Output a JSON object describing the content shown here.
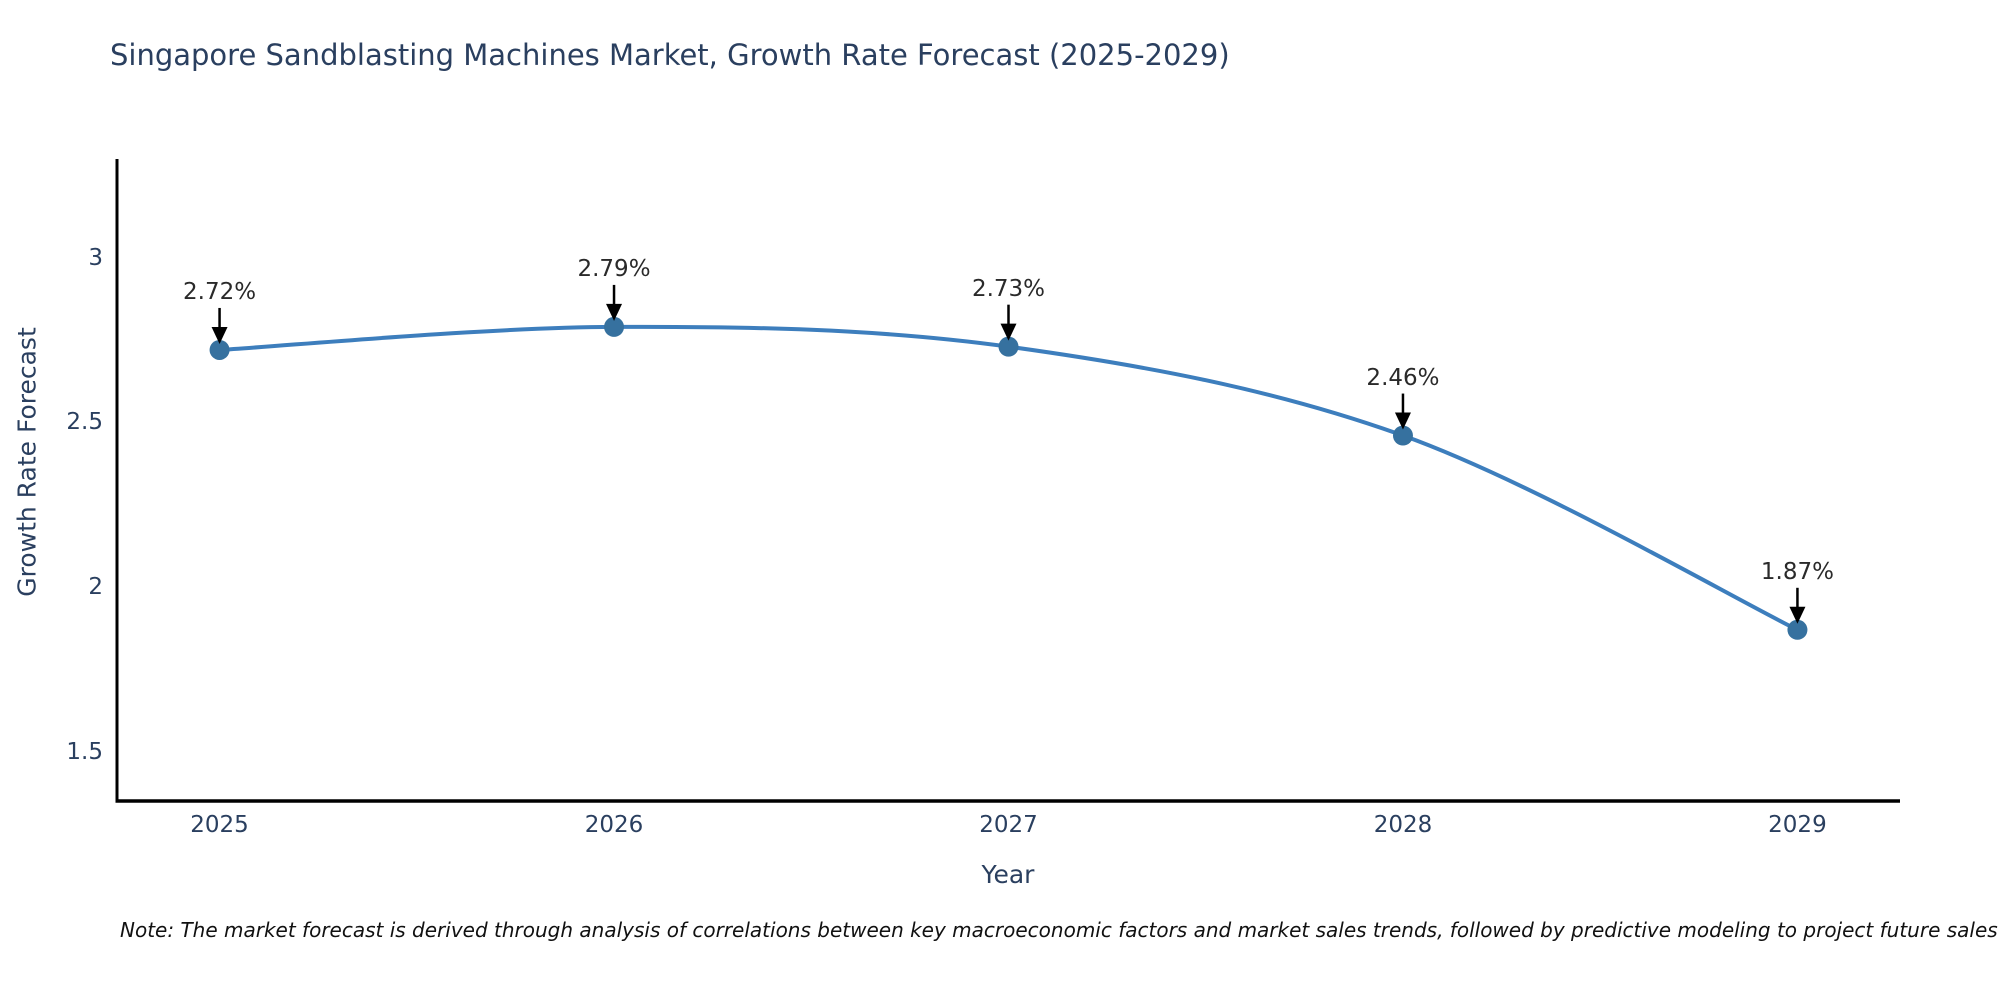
{
  "title": "Singapore Sandblasting Machines Market, Growth Rate Forecast (2025-2029)",
  "note": "Note: The market forecast is derived through analysis of correlations between key macroeconomic factors and market sales trends, followed by predictive modeling to project future sales",
  "chart_data": {
    "type": "line",
    "title": "Singapore Sandblasting Machines Market, Growth Rate Forecast (2025-2029)",
    "xlabel": "Year",
    "ylabel": "Growth Rate Forecast",
    "categories": [
      "2025",
      "2026",
      "2027",
      "2028",
      "2029"
    ],
    "values": [
      2.72,
      2.79,
      2.73,
      2.46,
      1.87
    ],
    "point_labels": [
      "2.72%",
      "2.79%",
      "2.73%",
      "2.46%",
      "1.87%"
    ],
    "y_ticks": [
      3,
      2.5,
      2,
      1.5
    ],
    "y_tick_labels": [
      "3",
      "2.5",
      "2",
      "1.5"
    ],
    "ylim": [
      1.35,
      3.3
    ],
    "x_range": [
      -0.26,
      4.26
    ],
    "grid": false,
    "legend": "none",
    "smooth": true,
    "colors": {
      "line": "#3d7ebd",
      "marker": "#36719f",
      "axis": "#000000",
      "text": "#2a3f5f",
      "annotation_text": "#2a2a2a",
      "arrow": "#000000",
      "background": "#ffffff"
    }
  }
}
